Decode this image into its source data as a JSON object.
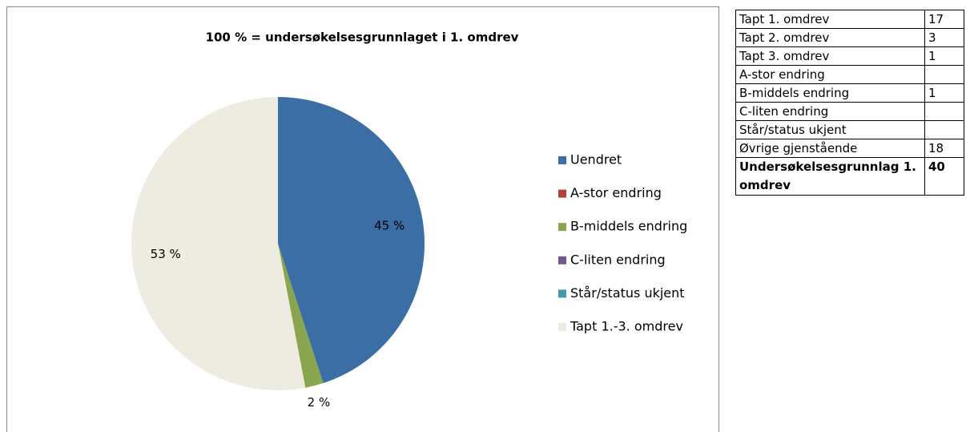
{
  "chart_data": {
    "type": "pie",
    "title": "100 % = undersøkelsesgrunnlaget i 1. omdrev",
    "categories": [
      "Uendret",
      "A-stor endring",
      "B-middels endring",
      "C-liten endring",
      "Står/status ukjent",
      "Tapt 1.-3. omdrev"
    ],
    "values": [
      45,
      0,
      2,
      0,
      0,
      53
    ],
    "value_labels": [
      "45 %",
      null,
      "2 %",
      null,
      null,
      "53 %"
    ],
    "colors": [
      "#3a6ea5",
      "#b7403c",
      "#89a54e",
      "#71588f",
      "#4198af",
      "#eeece1"
    ],
    "legend": "right"
  },
  "table": {
    "rows": [
      [
        "Tapt 1. omdrev",
        17
      ],
      [
        "Tapt 2. omdrev",
        3
      ],
      [
        "Tapt 3. omdrev",
        1
      ],
      [
        "A-stor endring",
        null
      ],
      [
        "B-middels endring",
        1
      ],
      [
        "C-liten endring",
        null
      ],
      [
        "Står/status ukjent",
        null
      ],
      [
        "Øvrige gjenstående",
        18
      ],
      [
        "Undersøkelsesgrunnlag 1. omdrev",
        40
      ]
    ]
  }
}
